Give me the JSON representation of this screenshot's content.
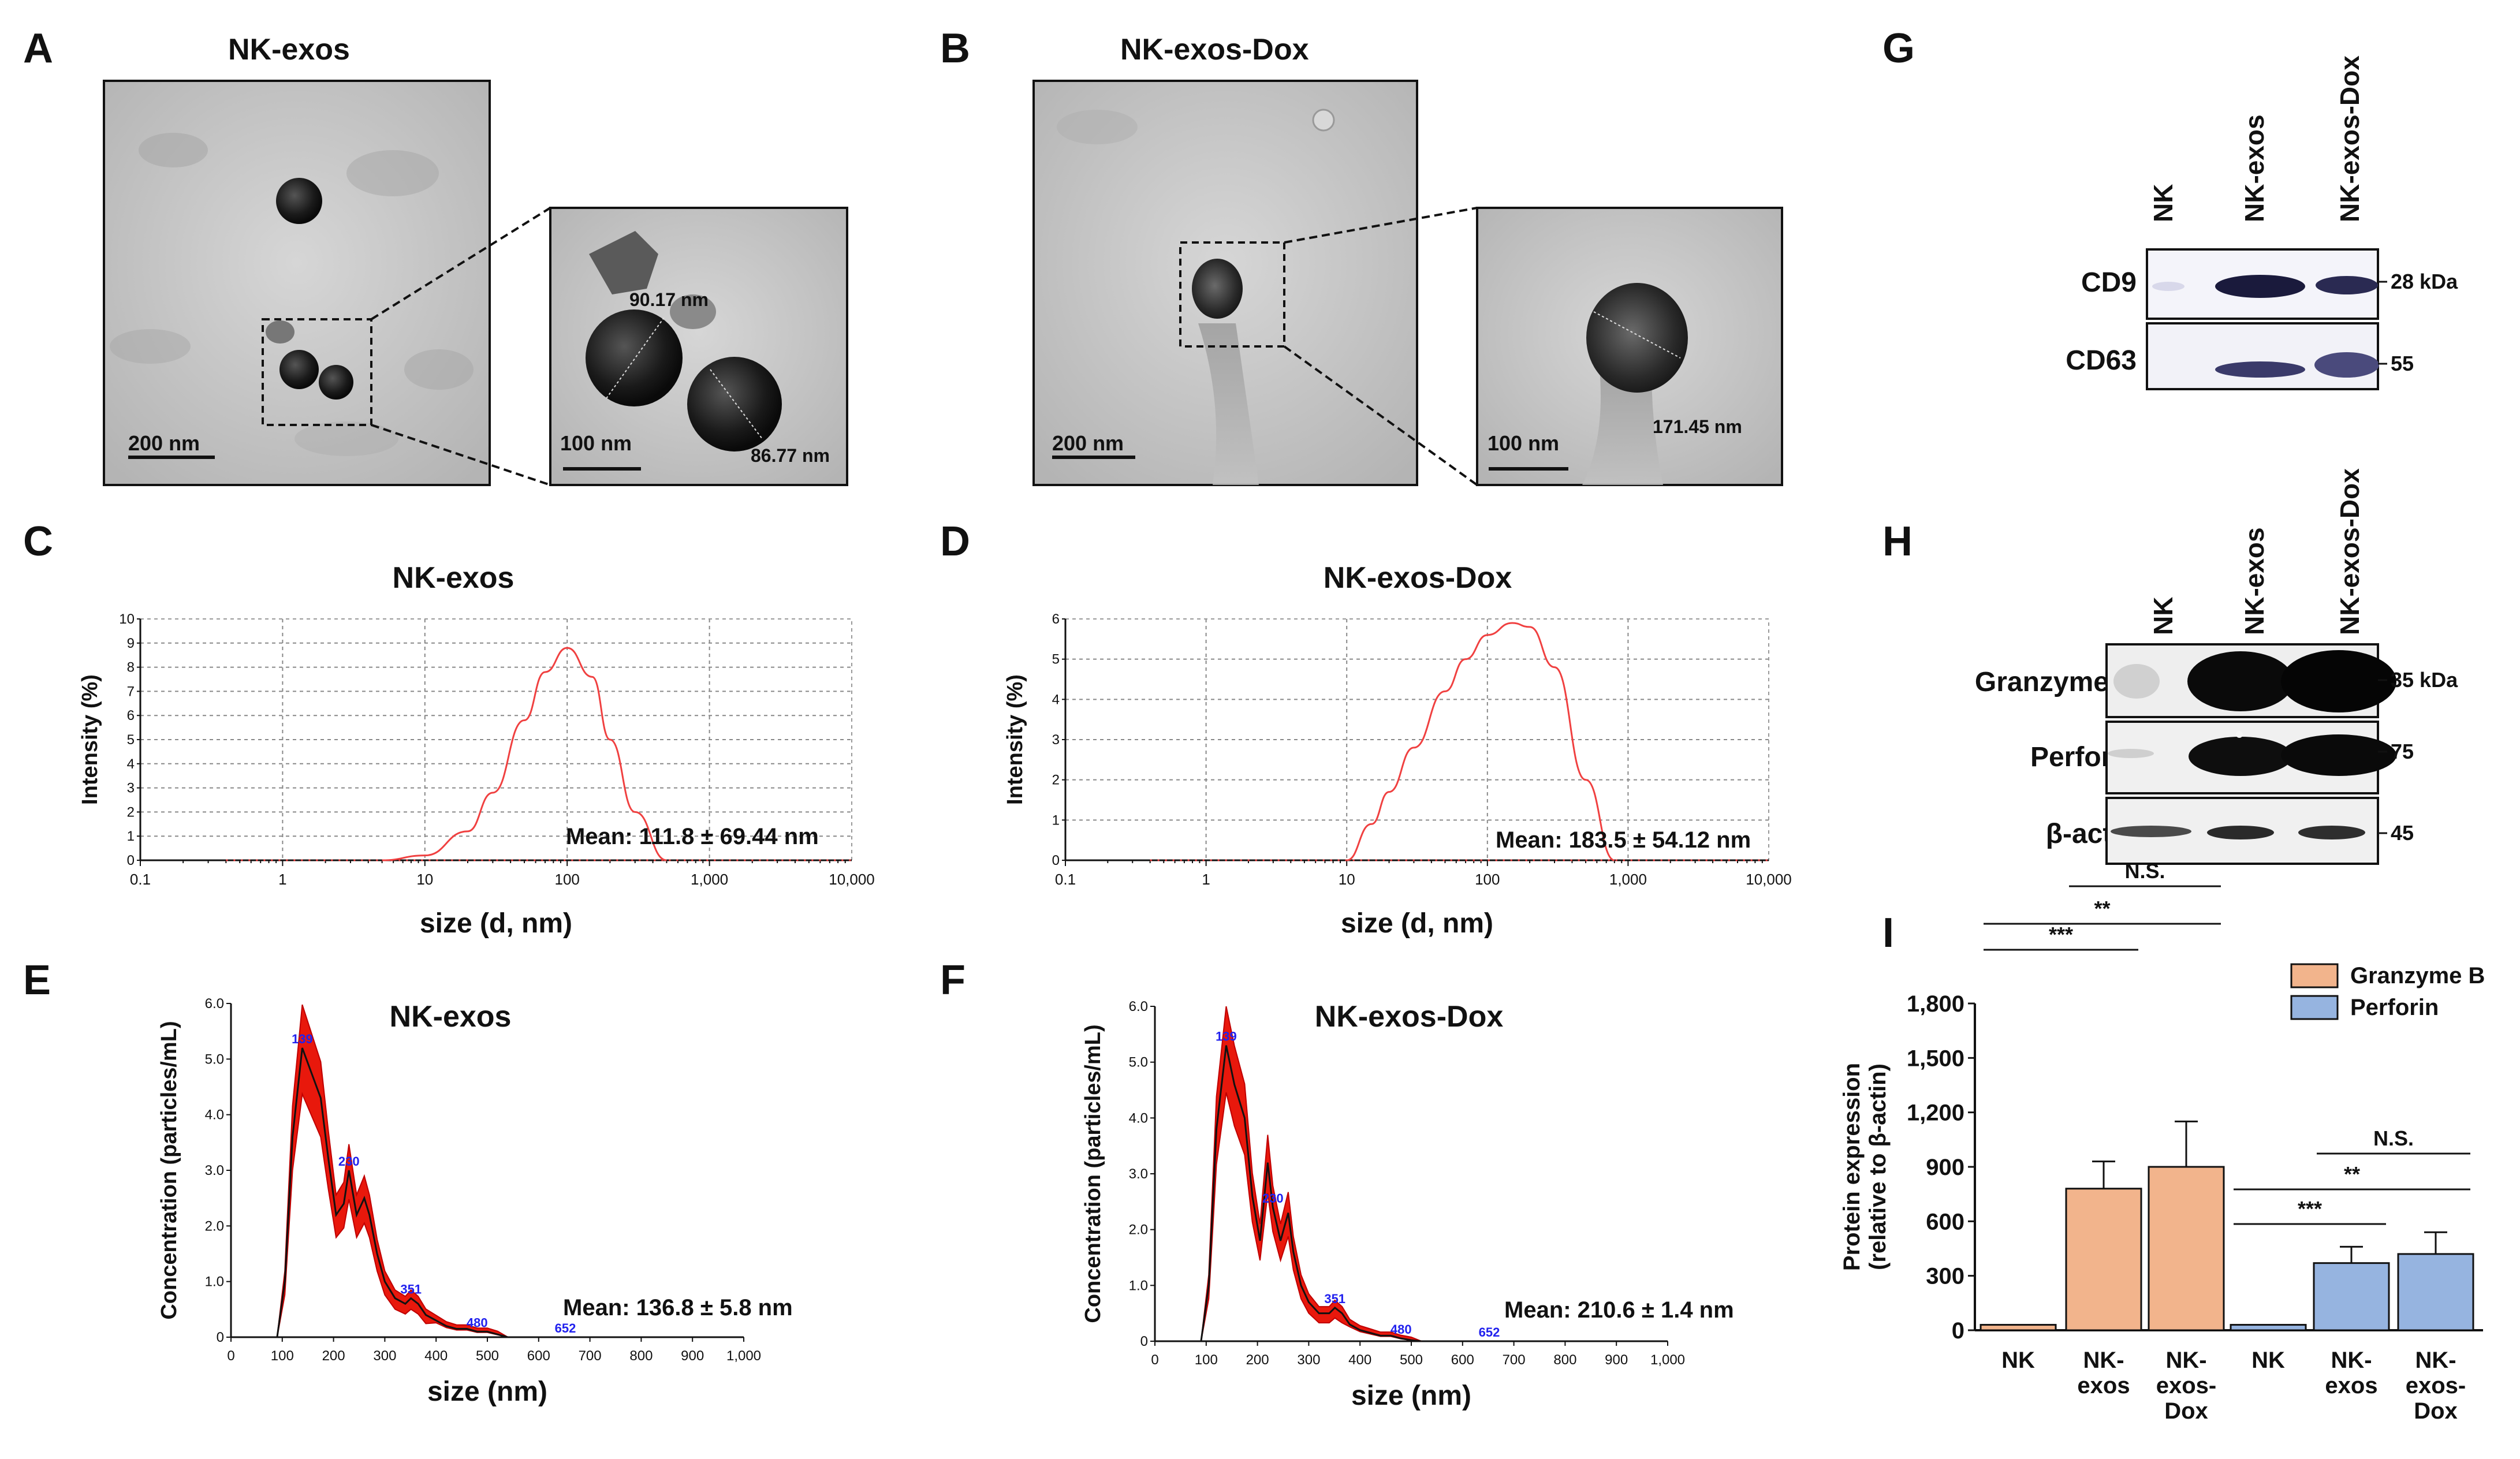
{
  "panel_labels": {
    "a": "A",
    "b": "B",
    "c": "C",
    "d": "D",
    "e": "E",
    "f": "F",
    "g": "G",
    "h": "H",
    "i": "I"
  },
  "tem": {
    "a_title": "NK-exos",
    "b_title": "NK-exos-Dox",
    "a_scale_main": "200 nm",
    "a_scale_zoom": "100 nm",
    "a_measure_1": "90.17 nm",
    "a_measure_2": "86.77 nm",
    "b_scale_main": "200 nm",
    "b_scale_zoom": "100 nm",
    "b_measure_1": "171.45 nm"
  },
  "dls": {
    "c_title": "NK-exos",
    "d_title": "NK-exos-Dox",
    "y_label": "Intensity (%)",
    "x_label": "size (d, nm)",
    "x_ticks": [
      "0.1",
      "1",
      "10",
      "100",
      "1,000",
      "10,000"
    ],
    "c_y_ticks": [
      "0",
      "1",
      "2",
      "3",
      "4",
      "5",
      "6",
      "7",
      "8",
      "9",
      "10"
    ],
    "d_y_ticks": [
      "0",
      "1",
      "2",
      "3",
      "4",
      "5",
      "6"
    ],
    "c_mean": "Mean: 111.8 ± 69.44 nm",
    "d_mean": "Mean: 183.5 ± 54.12 nm"
  },
  "nta": {
    "e_title": "NK-exos",
    "f_title": "NK-exos-Dox",
    "y_label": "Concentration (particles/mL)",
    "x_label": "size (nm)",
    "x_ticks": [
      "0",
      "100",
      "200",
      "300",
      "400",
      "500",
      "600",
      "700",
      "800",
      "900",
      "1,000"
    ],
    "y_ticks": [
      "0",
      "1.0",
      "2.0",
      "3.0",
      "4.0",
      "5.0",
      "6.0"
    ],
    "e_mean": "Mean: 136.8 ± 5.8 nm",
    "f_mean": "Mean: 210.6 ± 1.4 nm",
    "e_peaks": [
      "139",
      "230",
      "351",
      "480",
      "652"
    ],
    "f_peaks": [
      "139",
      "230",
      "351",
      "480",
      "652"
    ]
  },
  "western": {
    "g_lanes": [
      "NK",
      "NK-exos",
      "NK-exos-Dox"
    ],
    "g_rows": [
      "CD9",
      "CD63"
    ],
    "g_mw": [
      "28 kDa",
      "55"
    ],
    "h_lanes": [
      "NK",
      "NK-exos",
      "NK-exos-Dox"
    ],
    "h_rows": [
      "Granzyme B",
      "Perforin",
      "β-actin"
    ],
    "h_mw": [
      "35 kDa",
      "75",
      "45"
    ]
  },
  "chart_data": [
    {
      "panel": "C",
      "type": "line",
      "title": "NK-exos",
      "xlabel": "size (d, nm)",
      "ylabel": "Intensity (%)",
      "x_scale": "log",
      "xlim": [
        0.1,
        10000
      ],
      "ylim": [
        0,
        10
      ],
      "series": [
        {
          "name": "Intensity",
          "color": "#f04040",
          "x": [
            5,
            10,
            20,
            30,
            50,
            70,
            100,
            150,
            200,
            300,
            500
          ],
          "y": [
            0,
            0.2,
            1.2,
            2.8,
            5.8,
            7.8,
            8.8,
            7.6,
            5.0,
            2.0,
            0
          ]
        }
      ],
      "annotation": "Mean: 111.8 ± 69.44 nm"
    },
    {
      "panel": "D",
      "type": "line",
      "title": "NK-exos-Dox",
      "xlabel": "size (d, nm)",
      "ylabel": "Intensity (%)",
      "x_scale": "log",
      "xlim": [
        0.1,
        10000
      ],
      "ylim": [
        0,
        6
      ],
      "series": [
        {
          "name": "Intensity",
          "color": "#f04040",
          "x": [
            10,
            15,
            20,
            30,
            50,
            70,
            100,
            150,
            200,
            300,
            500,
            800
          ],
          "y": [
            0,
            0.9,
            1.7,
            2.8,
            4.2,
            5.0,
            5.6,
            5.9,
            5.8,
            4.8,
            2.0,
            0
          ]
        }
      ],
      "annotation": "Mean: 183.5 ± 54.12 nm"
    },
    {
      "panel": "E",
      "type": "area",
      "title": "NK-exos",
      "xlabel": "size (nm)",
      "ylabel": "Concentration (particles/mL)",
      "xlim": [
        0,
        1000
      ],
      "ylim": [
        0,
        6
      ],
      "series": [
        {
          "name": "Concentration",
          "color": "#e8180c",
          "x": [
            0,
            90,
            105,
            120,
            139,
            155,
            175,
            190,
            205,
            220,
            230,
            245,
            260,
            270,
            285,
            300,
            320,
            340,
            351,
            365,
            380,
            400,
            420,
            440,
            460,
            480,
            500,
            520,
            540
          ],
          "y": [
            0,
            0,
            1.0,
            3.6,
            5.2,
            4.8,
            4.3,
            3.2,
            2.2,
            2.4,
            3.0,
            2.2,
            2.5,
            2.2,
            1.5,
            1.0,
            0.7,
            0.6,
            0.7,
            0.6,
            0.4,
            0.3,
            0.2,
            0.15,
            0.15,
            0.1,
            0.1,
            0.05,
            0
          ]
        }
      ],
      "peak_labels": [
        139,
        230,
        351,
        480,
        652
      ],
      "annotation": "Mean: 136.8 ± 5.8 nm"
    },
    {
      "panel": "F",
      "type": "area",
      "title": "NK-exos-Dox",
      "xlabel": "size (nm)",
      "ylabel": "Concentration (particles/mL)",
      "xlim": [
        0,
        1000
      ],
      "ylim": [
        0,
        6
      ],
      "series": [
        {
          "name": "Concentration",
          "color": "#e8180c",
          "x": [
            0,
            90,
            105,
            120,
            139,
            155,
            175,
            190,
            205,
            220,
            230,
            245,
            260,
            270,
            285,
            300,
            320,
            340,
            351,
            365,
            380,
            400,
            420,
            440,
            460,
            480,
            500,
            520
          ],
          "y": [
            0,
            0,
            1.0,
            3.8,
            5.3,
            4.6,
            4.0,
            2.6,
            1.8,
            3.2,
            2.4,
            1.8,
            2.3,
            1.6,
            1.0,
            0.7,
            0.5,
            0.5,
            0.6,
            0.5,
            0.3,
            0.2,
            0.15,
            0.1,
            0.1,
            0.05,
            0.02,
            0
          ]
        }
      ],
      "peak_labels": [
        139,
        230,
        351,
        480,
        652
      ],
      "annotation": "Mean: 210.6 ± 1.4 nm"
    },
    {
      "panel": "I",
      "type": "bar",
      "ylabel": "Protein expression (relative to β-actin)",
      "ylabel_line1": "Protein expression",
      "ylabel_line2": "(relative to β-actin)",
      "ylim": [
        0,
        1800
      ],
      "y_ticks": [
        "0",
        "300",
        "600",
        "900",
        "1,200",
        "1,500",
        "1,800"
      ],
      "groups": [
        {
          "name": "Granzyme B",
          "color": "#f2b48c",
          "categories": [
            [
              "NK"
            ],
            [
              "NK-",
              "exos"
            ],
            [
              "NK-",
              "exos-",
              "Dox"
            ]
          ],
          "values": [
            30,
            780,
            900
          ],
          "errors": [
            0,
            150,
            250
          ]
        },
        {
          "name": "Perforin",
          "color": "#96b4e0",
          "categories": [
            [
              "NK"
            ],
            [
              "NK-",
              "exos"
            ],
            [
              "NK-",
              "exos-",
              "Dox"
            ]
          ],
          "values": [
            30,
            370,
            420
          ],
          "errors": [
            0,
            90,
            120
          ]
        }
      ],
      "significance": [
        {
          "group": 0,
          "from": 0,
          "to": 1,
          "label": "***"
        },
        {
          "group": 0,
          "from": 0,
          "to": 2,
          "label": "**"
        },
        {
          "group": 0,
          "from": 1,
          "to": 2,
          "label": "N.S."
        },
        {
          "group": 1,
          "from": 0,
          "to": 1,
          "label": "***"
        },
        {
          "group": 1,
          "from": 0,
          "to": 2,
          "label": "**"
        },
        {
          "group": 1,
          "from": 1,
          "to": 2,
          "label": "N.S."
        }
      ],
      "legend": [
        "Granzyme B",
        "Perforin"
      ]
    }
  ]
}
